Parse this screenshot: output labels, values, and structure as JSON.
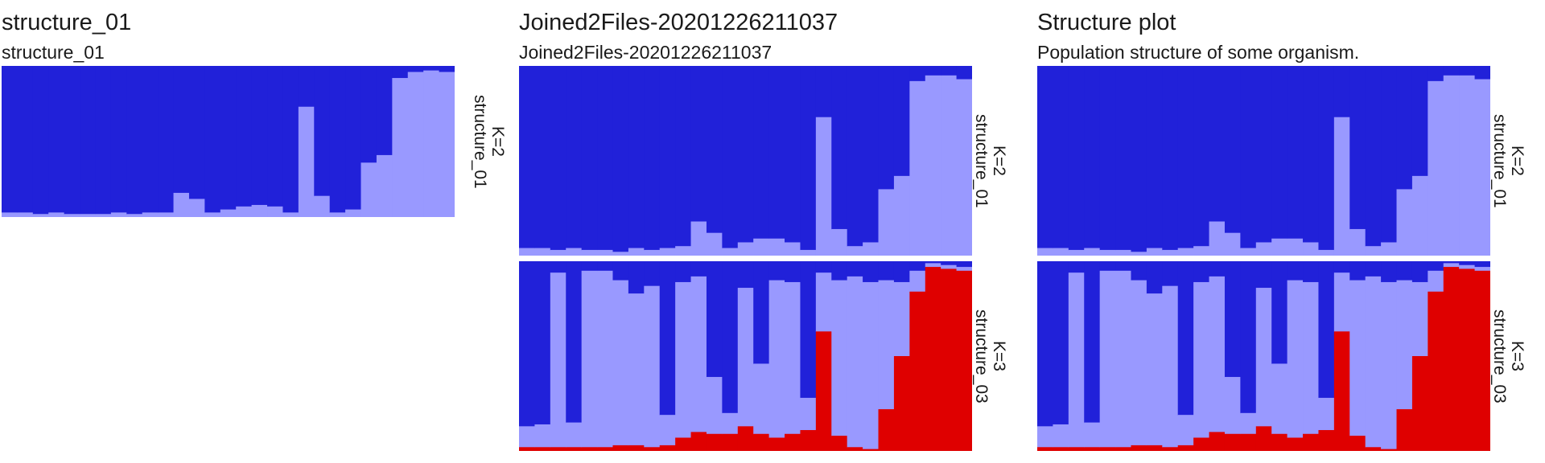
{
  "colors": {
    "c1": "#2121d9",
    "c2": "#9999ff",
    "c3": "#df0000"
  },
  "chart_data": [
    {
      "type": "bar",
      "stacked": true,
      "title": "structure_01",
      "subtitle": "structure_01",
      "n_individuals": 29,
      "panels": [
        {
          "run": "structure_01",
          "k_label": "K=2",
          "series": [
            {
              "cluster": 1,
              "color": "#2121d9",
              "values": [
                0.97,
                0.97,
                0.98,
                0.97,
                0.98,
                0.98,
                0.98,
                0.97,
                0.98,
                0.97,
                0.97,
                0.84,
                0.88,
                0.97,
                0.95,
                0.93,
                0.92,
                0.93,
                0.97,
                0.27,
                0.86,
                0.97,
                0.95,
                0.64,
                0.59,
                0.08,
                0.04,
                0.03,
                0.04
              ]
            },
            {
              "cluster": 2,
              "color": "#9999ff",
              "values": [
                0.03,
                0.03,
                0.02,
                0.03,
                0.02,
                0.02,
                0.02,
                0.03,
                0.02,
                0.03,
                0.03,
                0.16,
                0.12,
                0.03,
                0.05,
                0.07,
                0.08,
                0.07,
                0.03,
                0.73,
                0.14,
                0.03,
                0.05,
                0.36,
                0.41,
                0.92,
                0.96,
                0.97,
                0.96
              ]
            }
          ]
        }
      ]
    },
    {
      "type": "bar",
      "stacked": true,
      "title": "Joined2Files-20201226211037",
      "subtitle": "Joined2Files-20201226211037",
      "n_individuals": 29,
      "panels": [
        {
          "run": "structure_01",
          "k_label": "K=2",
          "series": [
            {
              "cluster": 1,
              "color": "#2121d9",
              "values": [
                0.96,
                0.96,
                0.97,
                0.96,
                0.97,
                0.97,
                0.98,
                0.96,
                0.97,
                0.96,
                0.95,
                0.82,
                0.88,
                0.96,
                0.93,
                0.91,
                0.91,
                0.93,
                0.97,
                0.27,
                0.86,
                0.95,
                0.93,
                0.65,
                0.58,
                0.08,
                0.05,
                0.05,
                0.07
              ]
            },
            {
              "cluster": 2,
              "color": "#9999ff",
              "values": [
                0.04,
                0.04,
                0.03,
                0.04,
                0.03,
                0.03,
                0.02,
                0.04,
                0.03,
                0.04,
                0.05,
                0.18,
                0.12,
                0.04,
                0.07,
                0.09,
                0.09,
                0.07,
                0.03,
                0.73,
                0.14,
                0.05,
                0.07,
                0.35,
                0.42,
                0.92,
                0.95,
                0.95,
                0.93
              ]
            }
          ]
        },
        {
          "run": "structure_03",
          "k_label": "K=3",
          "series": [
            {
              "cluster": 1,
              "color": "#2121d9",
              "values": [
                0.87,
                0.86,
                0.06,
                0.85,
                0.05,
                0.05,
                0.1,
                0.17,
                0.13,
                0.81,
                0.11,
                0.08,
                0.61,
                0.8,
                0.14,
                0.54,
                0.1,
                0.11,
                0.72,
                0.06,
                0.1,
                0.08,
                0.11,
                0.1,
                0.11,
                0.05,
                0.01,
                0.02,
                0.03
              ]
            },
            {
              "cluster": 2,
              "color": "#9999ff",
              "values": [
                0.11,
                0.12,
                0.92,
                0.13,
                0.93,
                0.93,
                0.87,
                0.8,
                0.85,
                0.16,
                0.82,
                0.82,
                0.3,
                0.11,
                0.73,
                0.37,
                0.83,
                0.8,
                0.17,
                0.31,
                0.82,
                0.9,
                0.88,
                0.68,
                0.39,
                0.11,
                0.02,
                0.02,
                0.02
              ]
            },
            {
              "cluster": 3,
              "color": "#df0000",
              "values": [
                0.02,
                0.02,
                0.02,
                0.02,
                0.02,
                0.02,
                0.03,
                0.03,
                0.02,
                0.03,
                0.07,
                0.1,
                0.09,
                0.09,
                0.13,
                0.09,
                0.07,
                0.09,
                0.11,
                0.63,
                0.08,
                0.02,
                0.01,
                0.22,
                0.5,
                0.84,
                0.97,
                0.96,
                0.95
              ]
            }
          ]
        }
      ]
    },
    {
      "type": "bar",
      "stacked": true,
      "title": "Structure plot",
      "subtitle": "Population structure of some organism.",
      "n_individuals": 29,
      "panels": [
        {
          "run": "structure_01",
          "k_label": "K=2",
          "series": [
            {
              "cluster": 1,
              "color": "#2121d9",
              "values": [
                0.96,
                0.96,
                0.97,
                0.96,
                0.97,
                0.97,
                0.98,
                0.96,
                0.97,
                0.96,
                0.95,
                0.82,
                0.88,
                0.96,
                0.93,
                0.91,
                0.91,
                0.93,
                0.97,
                0.27,
                0.86,
                0.95,
                0.93,
                0.65,
                0.58,
                0.08,
                0.05,
                0.05,
                0.07
              ]
            },
            {
              "cluster": 2,
              "color": "#9999ff",
              "values": [
                0.04,
                0.04,
                0.03,
                0.04,
                0.03,
                0.03,
                0.02,
                0.04,
                0.03,
                0.04,
                0.05,
                0.18,
                0.12,
                0.04,
                0.07,
                0.09,
                0.09,
                0.07,
                0.03,
                0.73,
                0.14,
                0.05,
                0.07,
                0.35,
                0.42,
                0.92,
                0.95,
                0.95,
                0.93
              ]
            }
          ]
        },
        {
          "run": "structure_03",
          "k_label": "K=3",
          "series": [
            {
              "cluster": 1,
              "color": "#2121d9",
              "values": [
                0.87,
                0.86,
                0.06,
                0.85,
                0.05,
                0.05,
                0.1,
                0.17,
                0.13,
                0.81,
                0.11,
                0.08,
                0.61,
                0.8,
                0.14,
                0.54,
                0.1,
                0.11,
                0.72,
                0.06,
                0.1,
                0.08,
                0.11,
                0.1,
                0.11,
                0.05,
                0.01,
                0.02,
                0.03
              ]
            },
            {
              "cluster": 2,
              "color": "#9999ff",
              "values": [
                0.11,
                0.12,
                0.92,
                0.13,
                0.93,
                0.93,
                0.87,
                0.8,
                0.85,
                0.16,
                0.82,
                0.82,
                0.3,
                0.11,
                0.73,
                0.37,
                0.83,
                0.8,
                0.17,
                0.31,
                0.82,
                0.9,
                0.88,
                0.68,
                0.39,
                0.11,
                0.02,
                0.02,
                0.02
              ]
            },
            {
              "cluster": 3,
              "color": "#df0000",
              "values": [
                0.02,
                0.02,
                0.02,
                0.02,
                0.02,
                0.02,
                0.03,
                0.03,
                0.02,
                0.03,
                0.07,
                0.1,
                0.09,
                0.09,
                0.13,
                0.09,
                0.07,
                0.09,
                0.11,
                0.63,
                0.08,
                0.02,
                0.01,
                0.22,
                0.5,
                0.84,
                0.97,
                0.96,
                0.95
              ]
            }
          ]
        }
      ]
    }
  ]
}
